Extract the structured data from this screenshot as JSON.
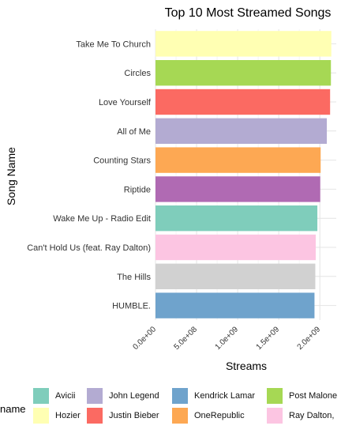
{
  "chart_data": {
    "type": "bar",
    "orientation": "horizontal",
    "title": "Top 10 Most Streamed Songs",
    "xlabel": "Streams",
    "ylabel": "Song Name",
    "xlim": [
      0,
      2200000000
    ],
    "x_ticks": [
      0,
      500000000,
      1000000000,
      1500000000,
      2000000000
    ],
    "x_tick_labels": [
      "0.0e+00",
      "5.0e+08",
      "1.0e+09",
      "1.5e+09",
      "2.0e+09"
    ],
    "grid": true,
    "legend_title": "name",
    "legend_position": "bottom",
    "categories": [
      "Take Me To Church",
      "Circles",
      "Love Yourself",
      "All of Me",
      "Counting Stars",
      "Riptide",
      "Wake Me Up - Radio Edit",
      "Can't Hold Us (feat. Ray Dalton)",
      "The Hills",
      "HUMBLE."
    ],
    "values": [
      2140000000,
      2135000000,
      2125000000,
      2085000000,
      2010000000,
      2005000000,
      1970000000,
      1950000000,
      1945000000,
      1935000000
    ],
    "bar_colors": [
      "#FFFFB3",
      "#A6D854",
      "#FB6A62",
      "#B3ABD2",
      "#FDA853",
      "#B06AB3",
      "#7FCDBB",
      "#FCC5E2",
      "#D1D1D1",
      "#6FA3CC"
    ],
    "legend": [
      {
        "label": "Avicii",
        "color": "#7FCDBB"
      },
      {
        "label": "Hozier",
        "color": "#FFFFB3"
      },
      {
        "label": "John Legend",
        "color": "#B3ABD2"
      },
      {
        "label": "Justin Bieber",
        "color": "#FB6A62"
      },
      {
        "label": "Kendrick Lamar",
        "color": "#6FA3CC"
      },
      {
        "label": "OneRepublic",
        "color": "#FDA853"
      },
      {
        "label": "Post Malone",
        "color": "#A6D854"
      },
      {
        "label": "Ray Dalton,",
        "color": "#FCC5E2"
      }
    ]
  }
}
